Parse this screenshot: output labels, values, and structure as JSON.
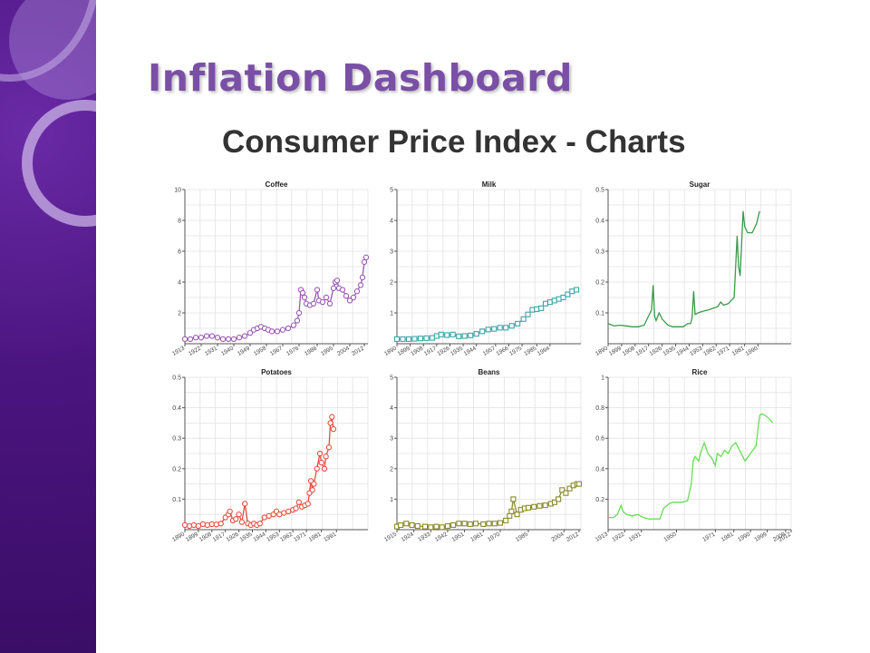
{
  "slide": {
    "title": "Inflation Dashboard",
    "subtitle": "Consumer Price Index - Charts"
  },
  "theme": {
    "sidebar": "#4b1580",
    "title_color": "#7a4fa6",
    "grid": "#e2e2e2"
  },
  "chart_data": [
    {
      "type": "line",
      "title": "Coffee",
      "marker": "circle",
      "color": "#9b59b6",
      "ylim": [
        0,
        10
      ],
      "yticks": [
        2,
        4,
        6,
        8,
        10
      ],
      "xlim": [
        1913,
        2014
      ],
      "xticks": [
        1913,
        1922,
        1931,
        1940,
        1949,
        1958,
        1967,
        1976,
        1986,
        1995,
        2004,
        2012
      ],
      "points": [
        [
          1913,
          0.3
        ],
        [
          1916,
          0.3
        ],
        [
          1919,
          0.4
        ],
        [
          1922,
          0.4
        ],
        [
          1925,
          0.5
        ],
        [
          1928,
          0.5
        ],
        [
          1931,
          0.4
        ],
        [
          1934,
          0.3
        ],
        [
          1937,
          0.3
        ],
        [
          1940,
          0.3
        ],
        [
          1943,
          0.4
        ],
        [
          1946,
          0.5
        ],
        [
          1949,
          0.7
        ],
        [
          1951,
          0.9
        ],
        [
          1953,
          1.0
        ],
        [
          1955,
          1.1
        ],
        [
          1957,
          1.0
        ],
        [
          1959,
          0.9
        ],
        [
          1961,
          0.8
        ],
        [
          1964,
          0.8
        ],
        [
          1967,
          0.9
        ],
        [
          1970,
          1.0
        ],
        [
          1973,
          1.2
        ],
        [
          1975,
          1.5
        ],
        [
          1976,
          2.0
        ],
        [
          1977,
          3.5
        ],
        [
          1978,
          3.3
        ],
        [
          1979,
          3.0
        ],
        [
          1980,
          2.6
        ],
        [
          1982,
          2.5
        ],
        [
          1984,
          2.6
        ],
        [
          1986,
          3.5
        ],
        [
          1987,
          2.8
        ],
        [
          1989,
          2.7
        ],
        [
          1991,
          3.0
        ],
        [
          1993,
          2.6
        ],
        [
          1995,
          3.6
        ],
        [
          1996,
          4.0
        ],
        [
          1997,
          4.1
        ],
        [
          1998,
          3.6
        ],
        [
          2000,
          3.5
        ],
        [
          2002,
          3.1
        ],
        [
          2004,
          2.8
        ],
        [
          2006,
          3.0
        ],
        [
          2008,
          3.4
        ],
        [
          2010,
          3.8
        ],
        [
          2011,
          4.3
        ],
        [
          2012,
          5.3
        ],
        [
          2013,
          5.6
        ]
      ]
    },
    {
      "type": "line",
      "title": "Milk",
      "marker": "square",
      "color": "#3aa6a6",
      "ylim": [
        0,
        5
      ],
      "yticks": [
        1,
        2,
        3,
        4,
        5
      ],
      "xlim": [
        1890,
        2015
      ],
      "xticks": [
        1890,
        1899,
        1908,
        1917,
        1926,
        1935,
        1944,
        1957,
        1966,
        1975,
        1985,
        1994
      ],
      "points": [
        [
          1890,
          0.15
        ],
        [
          1894,
          0.15
        ],
        [
          1898,
          0.15
        ],
        [
          1902,
          0.16
        ],
        [
          1906,
          0.17
        ],
        [
          1910,
          0.18
        ],
        [
          1914,
          0.19
        ],
        [
          1917,
          0.25
        ],
        [
          1920,
          0.3
        ],
        [
          1924,
          0.28
        ],
        [
          1928,
          0.3
        ],
        [
          1932,
          0.24
        ],
        [
          1936,
          0.25
        ],
        [
          1940,
          0.27
        ],
        [
          1944,
          0.32
        ],
        [
          1948,
          0.4
        ],
        [
          1952,
          0.46
        ],
        [
          1956,
          0.48
        ],
        [
          1960,
          0.52
        ],
        [
          1964,
          0.52
        ],
        [
          1968,
          0.58
        ],
        [
          1972,
          0.65
        ],
        [
          1976,
          0.8
        ],
        [
          1979,
          0.95
        ],
        [
          1982,
          1.1
        ],
        [
          1985,
          1.12
        ],
        [
          1988,
          1.15
        ],
        [
          1991,
          1.3
        ],
        [
          1994,
          1.35
        ],
        [
          1997,
          1.4
        ],
        [
          2000,
          1.45
        ],
        [
          2003,
          1.5
        ],
        [
          2006,
          1.6
        ],
        [
          2009,
          1.7
        ],
        [
          2012,
          1.75
        ]
      ]
    },
    {
      "type": "line",
      "title": "Sugar",
      "marker": "none",
      "color": "#3a9a4a",
      "ylim": [
        0,
        0.5
      ],
      "yticks": [
        0.1,
        0.2,
        0.3,
        0.4,
        0.5
      ],
      "xlim": [
        1890,
        2012
      ],
      "xticks": [
        1890,
        1899,
        1908,
        1917,
        1926,
        1935,
        1944,
        1953,
        1962,
        1971,
        1981,
        1990
      ],
      "points": [
        [
          1890,
          0.065
        ],
        [
          1894,
          0.058
        ],
        [
          1898,
          0.06
        ],
        [
          1902,
          0.058
        ],
        [
          1906,
          0.055
        ],
        [
          1910,
          0.055
        ],
        [
          1914,
          0.06
        ],
        [
          1917,
          0.09
        ],
        [
          1919,
          0.11
        ],
        [
          1920,
          0.19
        ],
        [
          1921,
          0.09
        ],
        [
          1922,
          0.075
        ],
        [
          1924,
          0.1
        ],
        [
          1926,
          0.08
        ],
        [
          1930,
          0.06
        ],
        [
          1933,
          0.055
        ],
        [
          1936,
          0.055
        ],
        [
          1940,
          0.055
        ],
        [
          1943,
          0.065
        ],
        [
          1945,
          0.065
        ],
        [
          1946,
          0.085
        ],
        [
          1947,
          0.17
        ],
        [
          1948,
          0.095
        ],
        [
          1950,
          0.1
        ],
        [
          1953,
          0.105
        ],
        [
          1957,
          0.11
        ],
        [
          1960,
          0.115
        ],
        [
          1963,
          0.12
        ],
        [
          1965,
          0.135
        ],
        [
          1967,
          0.125
        ],
        [
          1970,
          0.13
        ],
        [
          1974,
          0.15
        ],
        [
          1976,
          0.35
        ],
        [
          1977,
          0.25
        ],
        [
          1978,
          0.22
        ],
        [
          1980,
          0.43
        ],
        [
          1981,
          0.38
        ],
        [
          1983,
          0.36
        ],
        [
          1986,
          0.36
        ],
        [
          1989,
          0.39
        ],
        [
          1991,
          0.43
        ]
      ]
    },
    {
      "type": "line",
      "title": "Potatoes",
      "marker": "circle",
      "color": "#e74c3c",
      "ylim": [
        0,
        0.5
      ],
      "yticks": [
        0.1,
        0.2,
        0.3,
        0.4,
        0.5
      ],
      "xlim": [
        1890,
        2012
      ],
      "xticks": [
        1890,
        1899,
        1908,
        1917,
        1926,
        1935,
        1944,
        1953,
        1962,
        1971,
        1981,
        1991
      ],
      "points": [
        [
          1890,
          0.015
        ],
        [
          1893,
          0.012
        ],
        [
          1896,
          0.015
        ],
        [
          1899,
          0.012
        ],
        [
          1902,
          0.018
        ],
        [
          1905,
          0.015
        ],
        [
          1908,
          0.018
        ],
        [
          1911,
          0.017
        ],
        [
          1914,
          0.02
        ],
        [
          1917,
          0.04
        ],
        [
          1919,
          0.05
        ],
        [
          1920,
          0.06
        ],
        [
          1922,
          0.03
        ],
        [
          1924,
          0.035
        ],
        [
          1926,
          0.05
        ],
        [
          1928,
          0.025
        ],
        [
          1930,
          0.085
        ],
        [
          1932,
          0.02
        ],
        [
          1934,
          0.015
        ],
        [
          1936,
          0.02
        ],
        [
          1938,
          0.015
        ],
        [
          1940,
          0.02
        ],
        [
          1943,
          0.04
        ],
        [
          1946,
          0.045
        ],
        [
          1949,
          0.05
        ],
        [
          1951,
          0.06
        ],
        [
          1953,
          0.05
        ],
        [
          1956,
          0.055
        ],
        [
          1959,
          0.06
        ],
        [
          1962,
          0.065
        ],
        [
          1964,
          0.07
        ],
        [
          1966,
          0.09
        ],
        [
          1968,
          0.075
        ],
        [
          1970,
          0.08
        ],
        [
          1972,
          0.085
        ],
        [
          1973,
          0.12
        ],
        [
          1974,
          0.16
        ],
        [
          1975,
          0.13
        ],
        [
          1976,
          0.15
        ],
        [
          1978,
          0.2
        ],
        [
          1980,
          0.25
        ],
        [
          1981,
          0.22
        ],
        [
          1983,
          0.2
        ],
        [
          1984,
          0.24
        ],
        [
          1986,
          0.27
        ],
        [
          1987,
          0.35
        ],
        [
          1988,
          0.37
        ],
        [
          1989,
          0.33
        ]
      ]
    },
    {
      "type": "line",
      "title": "Beans",
      "marker": "square",
      "color": "#8a8a2a",
      "ylim": [
        0,
        5
      ],
      "yticks": [
        1,
        2,
        3,
        4,
        5
      ],
      "xlim": [
        1915,
        2013
      ],
      "xticks": [
        1915,
        1924,
        1933,
        1942,
        1951,
        1961,
        1970,
        1985,
        2004,
        2012
      ],
      "points": [
        [
          1915,
          0.1
        ],
        [
          1917,
          0.15
        ],
        [
          1920,
          0.2
        ],
        [
          1923,
          0.15
        ],
        [
          1926,
          0.12
        ],
        [
          1930,
          0.1
        ],
        [
          1933,
          0.08
        ],
        [
          1936,
          0.1
        ],
        [
          1939,
          0.08
        ],
        [
          1942,
          0.12
        ],
        [
          1945,
          0.15
        ],
        [
          1948,
          0.2
        ],
        [
          1951,
          0.2
        ],
        [
          1954,
          0.18
        ],
        [
          1957,
          0.2
        ],
        [
          1961,
          0.18
        ],
        [
          1964,
          0.2
        ],
        [
          1967,
          0.2
        ],
        [
          1970,
          0.22
        ],
        [
          1973,
          0.3
        ],
        [
          1975,
          0.45
        ],
        [
          1976,
          0.6
        ],
        [
          1977,
          1.0
        ],
        [
          1979,
          0.5
        ],
        [
          1981,
          0.65
        ],
        [
          1983,
          0.7
        ],
        [
          1985,
          0.72
        ],
        [
          1988,
          0.75
        ],
        [
          1991,
          0.78
        ],
        [
          1994,
          0.8
        ],
        [
          1997,
          0.85
        ],
        [
          1999,
          0.9
        ],
        [
          2001,
          1.0
        ],
        [
          2003,
          1.3
        ],
        [
          2005,
          1.2
        ],
        [
          2007,
          1.35
        ],
        [
          2009,
          1.45
        ],
        [
          2011,
          1.5
        ],
        [
          2012,
          1.5
        ]
      ]
    },
    {
      "type": "line",
      "title": "Rice",
      "marker": "none",
      "color": "#66dd55",
      "ylim": [
        0,
        1.0
      ],
      "yticks": [
        0.2,
        0.4,
        0.6,
        0.8,
        1.0
      ],
      "xlim": [
        1913,
        2012
      ],
      "xticks": [
        1913,
        1922,
        1931,
        1950,
        1971,
        1981,
        1990,
        1999,
        2009,
        2012
      ],
      "points": [
        [
          1913,
          0.08
        ],
        [
          1916,
          0.08
        ],
        [
          1918,
          0.1
        ],
        [
          1920,
          0.16
        ],
        [
          1921,
          0.12
        ],
        [
          1923,
          0.1
        ],
        [
          1926,
          0.09
        ],
        [
          1929,
          0.1
        ],
        [
          1932,
          0.08
        ],
        [
          1935,
          0.07
        ],
        [
          1938,
          0.07
        ],
        [
          1941,
          0.07
        ],
        [
          1943,
          0.14
        ],
        [
          1946,
          0.17
        ],
        [
          1948,
          0.18
        ],
        [
          1950,
          0.18
        ],
        [
          1953,
          0.18
        ],
        [
          1956,
          0.19
        ],
        [
          1958,
          0.3
        ],
        [
          1959,
          0.45
        ],
        [
          1960,
          0.48
        ],
        [
          1962,
          0.45
        ],
        [
          1963,
          0.5
        ],
        [
          1965,
          0.57
        ],
        [
          1967,
          0.5
        ],
        [
          1969,
          0.47
        ],
        [
          1971,
          0.42
        ],
        [
          1972,
          0.5
        ],
        [
          1974,
          0.48
        ],
        [
          1976,
          0.52
        ],
        [
          1978,
          0.5
        ],
        [
          1980,
          0.55
        ],
        [
          1982,
          0.57
        ],
        [
          1985,
          0.5
        ],
        [
          1987,
          0.45
        ],
        [
          1990,
          0.5
        ],
        [
          1993,
          0.55
        ],
        [
          1995,
          0.75
        ],
        [
          1996,
          0.76
        ],
        [
          1998,
          0.75
        ],
        [
          2000,
          0.73
        ],
        [
          2002,
          0.7
        ]
      ]
    }
  ]
}
